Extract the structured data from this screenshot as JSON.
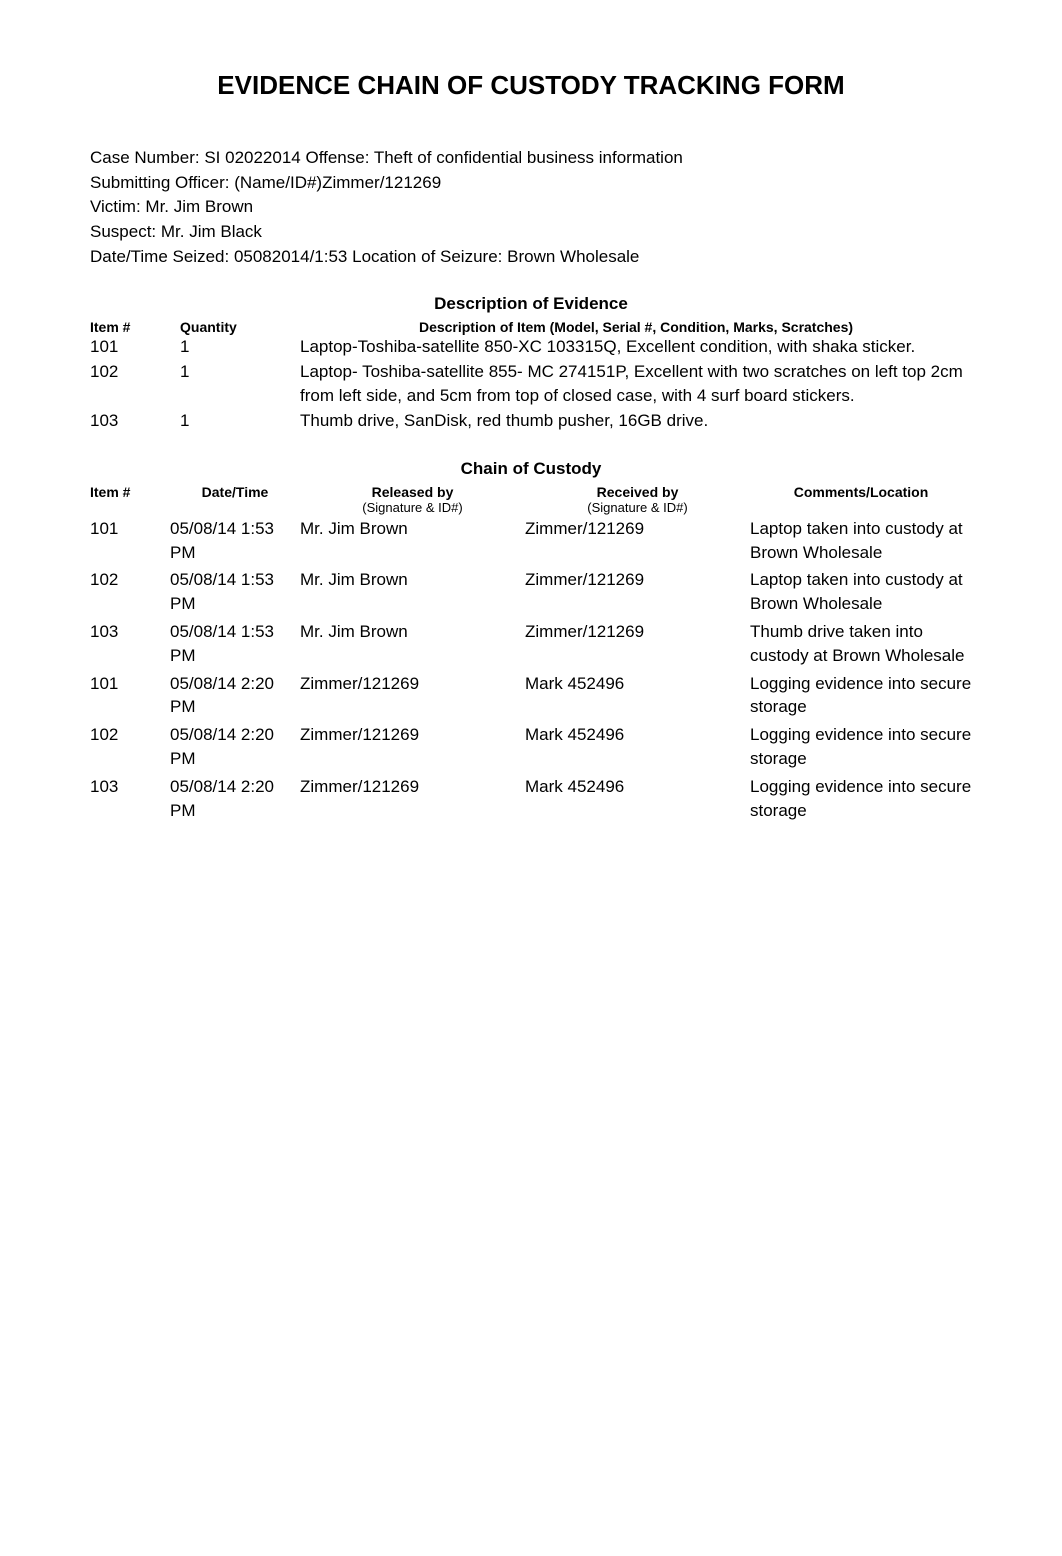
{
  "title": "EVIDENCE CHAIN OF CUSTODY TRACKING FORM",
  "case_info": {
    "case_number_label": "Case Number: ",
    "case_number": "SI 02022014",
    "offense_label": " Offense: ",
    "offense": "Theft of confidential business information",
    "submitting_officer_label": "Submitting Officer: (Name/ID#)",
    "submitting_officer": "Zimmer/121269",
    "victim_label": "Victim: ",
    "victim": "Mr. Jim Brown",
    "suspect_label": "Suspect: ",
    "suspect": "Mr. Jim Black",
    "datetime_seized_label": "Date/Time Seized: ",
    "datetime_seized": "05082014/1:53",
    "location_seizure_label": " Location of Seizure: ",
    "location_seizure": "Brown Wholesale"
  },
  "evidence_section": {
    "heading": "Description of Evidence",
    "headers": {
      "item": "Item #",
      "quantity": "Quantity",
      "description": "Description of Item (Model, Serial #, Condition, Marks, Scratches)"
    },
    "rows": [
      {
        "item": "101",
        "quantity": "1",
        "description": "Laptop-Toshiba-satellite 850-XC 103315Q, Excellent condition, with shaka sticker."
      },
      {
        "item": "102",
        "quantity": "1",
        "description": "Laptop- Toshiba-satellite 855- MC 274151P, Excellent with two scratches on left top 2cm from left side, and 5cm from top of closed case, with 4 surf board stickers."
      },
      {
        "item": "103",
        "quantity": "1",
        "description": "Thumb drive, SanDisk, red thumb pusher, 16GB drive."
      }
    ]
  },
  "custody_section": {
    "heading": "Chain of Custody",
    "headers": {
      "item": "Item #",
      "date": "Date/Time",
      "released": "Released by",
      "released_sub": "(Signature & ID#)",
      "received": "Received by",
      "received_sub": "(Signature & ID#)",
      "comments": "Comments/Location"
    },
    "rows": [
      {
        "item": "101",
        "date": "05/08/14 1:53 PM",
        "released": "Mr. Jim Brown",
        "received": "Zimmer/121269",
        "comments": "Laptop taken into custody at Brown Wholesale"
      },
      {
        "item": "102",
        "date": "05/08/14 1:53 PM",
        "released": "Mr. Jim Brown",
        "received": "Zimmer/121269",
        "comments": "Laptop taken into custody at Brown Wholesale"
      },
      {
        "item": "103",
        "date": "05/08/14 1:53 PM",
        "released": "Mr. Jim Brown",
        "received": "Zimmer/121269",
        "comments": "Thumb drive taken into custody at Brown Wholesale"
      },
      {
        "item": "101",
        "date": "05/08/14 2:20 PM",
        "released": "Zimmer/121269",
        "received": "Mark 452496",
        "comments": "Logging evidence into secure storage"
      },
      {
        "item": "102",
        "date": "05/08/14 2:20 PM",
        "released": "Zimmer/121269",
        "received": "Mark 452496",
        "comments": "Logging evidence into secure storage"
      },
      {
        "item": "103",
        "date": "05/08/14 2:20 PM",
        "released": "Zimmer/121269",
        "received": "Mark 452496",
        "comments": "Logging evidence into secure storage"
      }
    ]
  },
  "styling": {
    "background_color": "#ffffff",
    "text_color": "#000000",
    "title_fontsize": 26,
    "body_fontsize": 17,
    "header_fontsize": 14,
    "subheader_fontsize": 13,
    "font_family": "Arial"
  }
}
